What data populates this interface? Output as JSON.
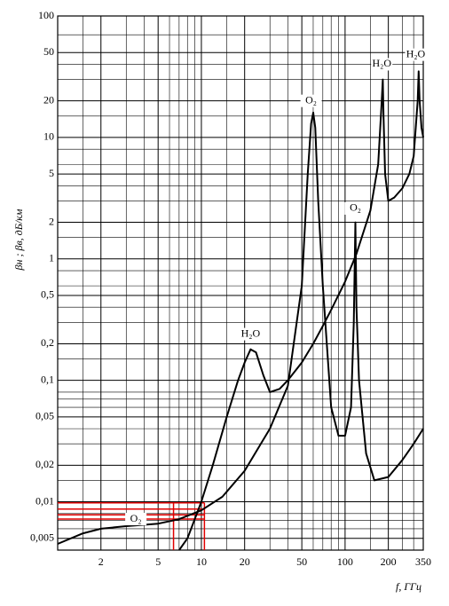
{
  "chart_data": {
    "type": "line",
    "ylabel": "βн ; βв, дБ/км",
    "xlabel": "f, ГГц",
    "xscale": "log",
    "yscale": "log",
    "grid": true,
    "xlim": [
      1,
      350
    ],
    "ylim": [
      0.004,
      100
    ],
    "xticks": [
      2,
      5,
      10,
      20,
      50,
      100,
      200,
      350
    ],
    "yticks": [
      100,
      50,
      20,
      10,
      5,
      2,
      1,
      {
        "value": 0.5,
        "label": "0,5"
      },
      {
        "value": 0.2,
        "label": "0,2"
      },
      {
        "value": 0.1,
        "label": "0,1"
      },
      {
        "value": 0.05,
        "label": "0,05"
      },
      {
        "value": 0.02,
        "label": "0,02"
      },
      {
        "value": 0.01,
        "label": "0,01"
      },
      {
        "value": 0.005,
        "label": "0,005"
      }
    ],
    "xgrid": [
      1.5,
      3,
      4,
      6,
      7,
      8,
      9,
      15,
      30,
      40,
      60,
      70,
      80,
      90,
      150,
      250,
      300
    ],
    "ygrid": [
      70,
      40,
      30,
      15,
      8,
      6,
      4,
      3,
      1.5,
      0.8,
      0.6,
      0.4,
      0.3,
      0.15,
      0.08,
      0.07,
      0.06,
      0.04,
      0.03,
      0.015,
      0.008,
      0.007,
      0.006
    ],
    "color": "#000000",
    "series": [
      {
        "x": [
          1,
          1.5,
          2,
          3,
          5,
          7,
          10,
          14,
          20,
          30,
          40,
          50,
          55,
          58,
          60,
          62,
          65,
          70,
          80,
          90,
          100,
          110,
          115,
          118,
          120,
          125,
          140,
          160,
          200,
          250,
          300,
          350
        ],
        "values": [
          0.0045,
          0.0055,
          0.006,
          0.0063,
          0.0066,
          0.0072,
          0.0085,
          0.011,
          0.018,
          0.04,
          0.09,
          0.6,
          5,
          13,
          16,
          12,
          3,
          0.6,
          0.06,
          0.035,
          0.035,
          0.06,
          0.3,
          2,
          0.4,
          0.1,
          0.025,
          0.015,
          0.016,
          0.022,
          0.03,
          0.04
        ]
      },
      {
        "x": [
          7,
          8,
          10,
          12,
          15,
          18,
          20,
          22,
          24,
          27,
          30,
          35,
          40,
          50,
          60,
          70,
          80,
          100,
          120,
          150,
          170,
          180,
          183,
          185,
          190,
          200,
          220,
          250,
          280,
          300,
          320,
          325,
          330,
          340,
          350
        ],
        "values": [
          0.004,
          0.005,
          0.01,
          0.02,
          0.05,
          0.1,
          0.14,
          0.18,
          0.17,
          0.11,
          0.08,
          0.085,
          0.1,
          0.14,
          0.2,
          0.28,
          0.38,
          0.65,
          1.1,
          2.5,
          6,
          20,
          30,
          15,
          5,
          3,
          3.2,
          3.8,
          5,
          7,
          20,
          35,
          20,
          12,
          10
        ]
      }
    ],
    "annotations": [
      {
        "text": "H₂O",
        "x": 22,
        "y": 0.24
      },
      {
        "text": "O₂",
        "x": 58,
        "y": 20
      },
      {
        "text": "O₂",
        "x": 118,
        "y": 2.6
      },
      {
        "text": "H₂O",
        "x": 180,
        "y": 40
      },
      {
        "text": "H₂O",
        "x": 310,
        "y": 48
      },
      {
        "text": "O₂",
        "x": 3.5,
        "y": 0.0072
      }
    ],
    "red_color": "#e00000",
    "red_hlines": [
      0.0098,
      0.0087,
      0.0078,
      0.0072
    ],
    "red_vlines": [
      6.4,
      10.5
    ]
  }
}
